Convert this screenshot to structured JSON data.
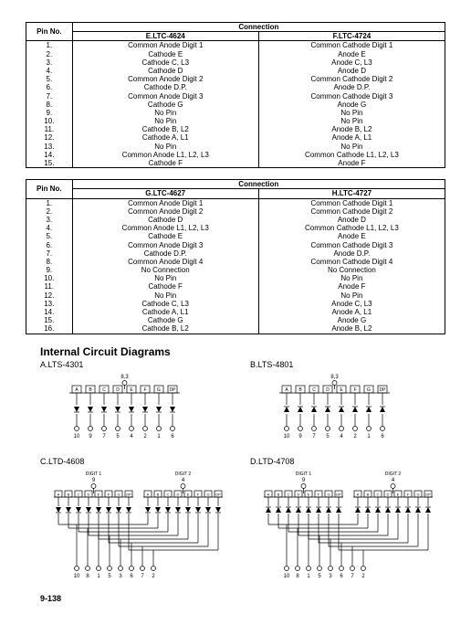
{
  "table1": {
    "header_pin": "Pin No.",
    "header_conn": "Connection",
    "colE": "E.LTC-4624",
    "colF": "F.LTC-4724",
    "rows": [
      {
        "pin": "1.",
        "e": "Common Anode Digit 1",
        "f": "Common Cathode Digit 1"
      },
      {
        "pin": "2.",
        "e": "Cathode E",
        "f": "Anode E"
      },
      {
        "pin": "3.",
        "e": "Cathode C, L3",
        "f": "Anode C, L3"
      },
      {
        "pin": "4.",
        "e": "Cathode D",
        "f": "Anode D"
      },
      {
        "pin": "5.",
        "e": "Common Anode Digit 2",
        "f": "Common Cathode Digit 2"
      },
      {
        "pin": "6.",
        "e": "Cathode D.P.",
        "f": "Anode D.P."
      },
      {
        "pin": "7.",
        "e": "Common Anode Digit 3",
        "f": "Common Cathode Digit 3"
      },
      {
        "pin": "8.",
        "e": "Cathode G",
        "f": "Anode G"
      },
      {
        "pin": "9.",
        "e": "No Pin",
        "f": "No Pin"
      },
      {
        "pin": "10.",
        "e": "No Pin",
        "f": "No Pin"
      },
      {
        "pin": "11.",
        "e": "Cathode B, L2",
        "f": "Anode B, L2"
      },
      {
        "pin": "12.",
        "e": "Cathode A, L1",
        "f": "Anode A, L1"
      },
      {
        "pin": "13.",
        "e": "No Pin",
        "f": "No Pin"
      },
      {
        "pin": "14.",
        "e": "Common Anode L1, L2, L3",
        "f": "Common Cathode L1, L2, L3"
      },
      {
        "pin": "15.",
        "e": "Cathode F",
        "f": "Anode F"
      }
    ]
  },
  "table2": {
    "header_pin": "Pin No.",
    "header_conn": "Connection",
    "colG": "G.LTC-4627",
    "colH": "H.LTC-4727",
    "rows": [
      {
        "pin": "1.",
        "g": "Common Anode Digit 1",
        "h": "Common Cathode Digit 1"
      },
      {
        "pin": "2.",
        "g": "Common Anode Digit 2",
        "h": "Common Cathode Digit 2"
      },
      {
        "pin": "3.",
        "g": "Cathode D",
        "h": "Anode D"
      },
      {
        "pin": "4.",
        "g": "Common Anode L1, L2, L3",
        "h": "Common Cathode L1, L2, L3"
      },
      {
        "pin": "5.",
        "g": "Cathode E",
        "h": "Anode E"
      },
      {
        "pin": "6.",
        "g": "Common Anode Digit 3",
        "h": "Common Cathode Digit 3"
      },
      {
        "pin": "7.",
        "g": "Cathode D.P.",
        "h": "Anode D.P."
      },
      {
        "pin": "8.",
        "g": "Common Anode Digit 4",
        "h": "Common Cathode Digit 4"
      },
      {
        "pin": "9.",
        "g": "No Connection",
        "h": "No Connection"
      },
      {
        "pin": "10.",
        "g": "No Pin",
        "h": "No Pin"
      },
      {
        "pin": "11.",
        "g": "Cathode F",
        "h": "Anode F"
      },
      {
        "pin": "12.",
        "g": "No Pin",
        "h": "No Pin"
      },
      {
        "pin": "13.",
        "g": "Cathode C, L3",
        "h": "Anode C, L3"
      },
      {
        "pin": "14.",
        "g": "Cathode A, L1",
        "h": "Anode A, L1"
      },
      {
        "pin": "15.",
        "g": "Cathode G",
        "h": "Anode G"
      },
      {
        "pin": "16.",
        "g": "Cathode B, L2",
        "h": "Anode B, L2"
      }
    ]
  },
  "section_title": "Internal Circuit Diagrams",
  "diagA": {
    "label": "A.LTS-4301",
    "top_pin": "8,3",
    "top_labels": [
      "A",
      "B",
      "C",
      "D",
      "E",
      "F",
      "G",
      "DP"
    ],
    "bottom_labels": [
      "10",
      "9",
      "7",
      "5",
      "4",
      "2",
      "1",
      "6"
    ],
    "diode_dir": "down"
  },
  "diagB": {
    "label": "B.LTS-4801",
    "top_pin": "8,3",
    "top_labels": [
      "A",
      "B",
      "C",
      "D",
      "E",
      "F",
      "G",
      "DP"
    ],
    "bottom_labels": [
      "10",
      "9",
      "7",
      "5",
      "4",
      "2",
      "1",
      "6"
    ],
    "diode_dir": "up"
  },
  "diagC": {
    "label": "C.LTD-4608",
    "digit1": "DIGIT 1",
    "digit1_pin": "9",
    "digit2": "DIGIT 2",
    "digit2_pin": "4",
    "seg_labels": [
      "A",
      "B",
      "C",
      "D",
      "E",
      "F",
      "G",
      "DP"
    ],
    "bottom_labels": [
      "10",
      "8",
      "1",
      "5",
      "3",
      "6",
      "7",
      "2"
    ],
    "diode_dir": "down"
  },
  "diagD": {
    "label": "D.LTD-4708",
    "digit1": "DIGIT 1",
    "digit1_pin": "9",
    "digit2": "DIGIT 2",
    "digit2_pin": "4",
    "seg_labels": [
      "A",
      "B",
      "C",
      "D",
      "E",
      "F",
      "G",
      "DP"
    ],
    "bottom_labels": [
      "10",
      "8",
      "1",
      "5",
      "3",
      "6",
      "7",
      "2"
    ],
    "diode_dir": "up"
  },
  "page": "9-138"
}
